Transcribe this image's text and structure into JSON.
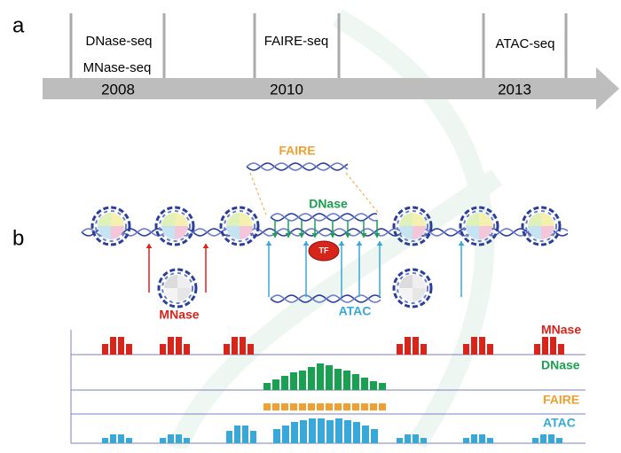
{
  "panel_a": {
    "label": "a",
    "events": [
      {
        "methods": [
          "DNase-seq",
          "MNase-seq"
        ],
        "year": "2008"
      },
      {
        "methods": [
          "FAIRE-seq"
        ],
        "year": "2010"
      },
      {
        "methods": [
          "ATAC-seq"
        ],
        "year": "2013"
      }
    ]
  },
  "panel_b": {
    "label": "b",
    "fragment_labels": {
      "faire": "FAIRE",
      "dnase": "DNase",
      "mnase": "MNase",
      "atac": "ATAC",
      "tf": "TF"
    },
    "tracks": [
      "MNase",
      "DNase",
      "FAIRE",
      "ATAC"
    ]
  }
}
